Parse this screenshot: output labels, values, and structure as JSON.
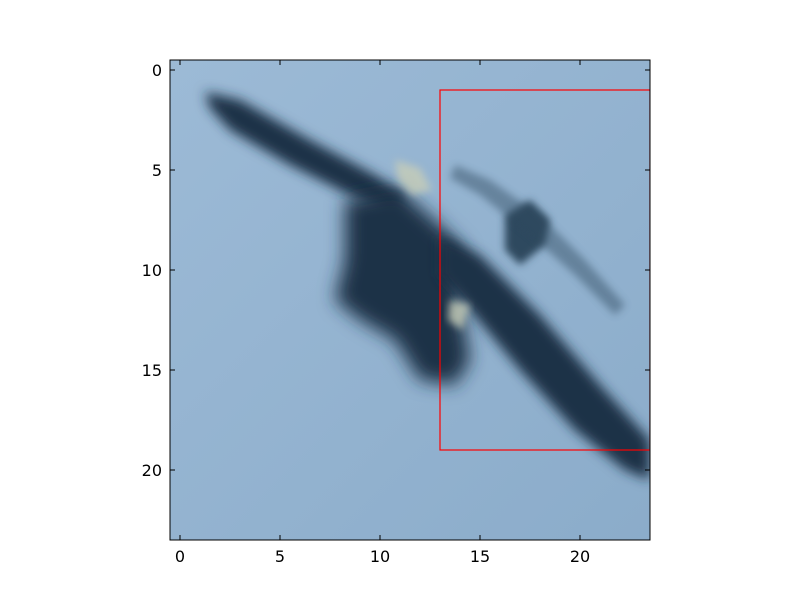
{
  "chart_data": {
    "type": "heatmap",
    "subject": "blurred low-resolution image of an aircraft",
    "colors": {
      "sky": "#8bacca",
      "sky_light": "#9cbad6",
      "aircraft_dark": "#1a3347",
      "aircraft_mid": "#2d4a5e",
      "highlight": "#c7cdb8",
      "box": "#ff0000",
      "axes": "#000000"
    },
    "xlim": [
      -0.5,
      23.5
    ],
    "ylim": [
      23.5,
      -0.5
    ],
    "x_ticks": [
      {
        "value": 0,
        "label": "0"
      },
      {
        "value": 5,
        "label": "5"
      },
      {
        "value": 10,
        "label": "10"
      },
      {
        "value": 15,
        "label": "15"
      },
      {
        "value": 20,
        "label": "20"
      }
    ],
    "y_ticks": [
      {
        "value": 0,
        "label": "0"
      },
      {
        "value": 5,
        "label": "5"
      },
      {
        "value": 10,
        "label": "10"
      },
      {
        "value": 15,
        "label": "15"
      },
      {
        "value": 20,
        "label": "20"
      }
    ],
    "bounding_box": {
      "x0": 13,
      "y0": 1,
      "x1": 23.5,
      "y1": 19
    },
    "grid": false
  }
}
